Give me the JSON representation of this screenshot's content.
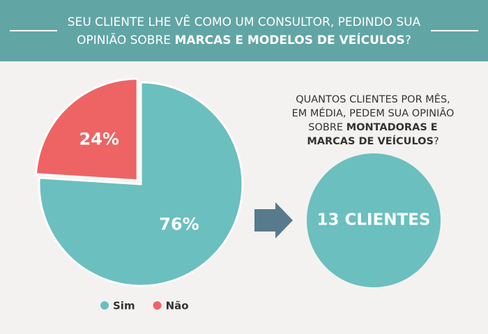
{
  "header": {
    "line1": "SEU CLIENTE LHE VÊ COMO UM CONSULTOR, PEDINDO SUA",
    "line2_start": "OPINIÃO SOBRE ",
    "line2_bold": "MARCAS E MODELOS DE VEÍCULOS",
    "line2_end": "?"
  },
  "chart_data": {
    "type": "pie",
    "categories": [
      "Sim",
      "Não"
    ],
    "values": [
      76,
      24
    ],
    "value_labels": [
      "76%",
      "24%"
    ],
    "colors": [
      "#6bbfbf",
      "#ee6464"
    ],
    "legend": "bottom",
    "exploded": [
      false,
      true
    ]
  },
  "callout": {
    "question": {
      "line1": "QUANTOS CLIENTES POR MÊS,",
      "line2": "EM MÉDIA, PEDEM SUA OPINIÃO",
      "line3_start": "SOBRE ",
      "line3_bold": "MONTADORAS E",
      "line4_bold": "MARCAS DE VEÍCULOS",
      "line4_end": "?"
    },
    "answer": "13 CLIENTES"
  }
}
